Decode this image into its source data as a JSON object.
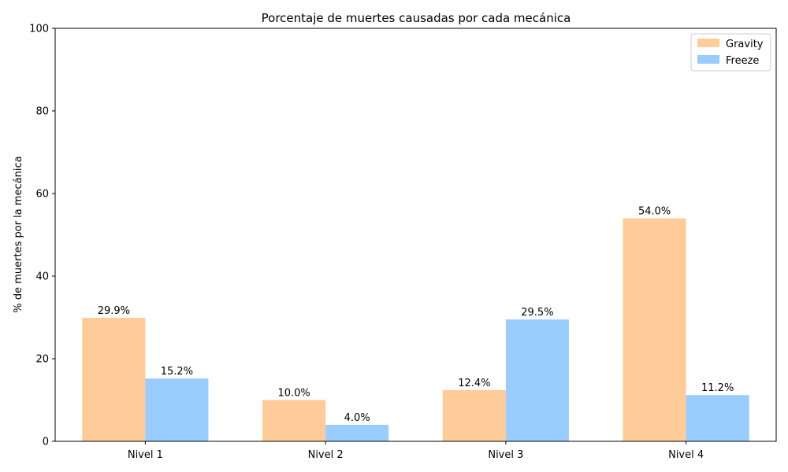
{
  "chart_data": {
    "type": "bar",
    "title": "Porcentaje de muertes causadas por cada mecánica",
    "xlabel": "",
    "ylabel": "% de muertes por la mecánica",
    "categories": [
      "Nivel 1",
      "Nivel 2",
      "Nivel 3",
      "Nivel 4"
    ],
    "ylim": [
      0,
      100
    ],
    "yticks": [
      0,
      20,
      40,
      60,
      80,
      100
    ],
    "grid": false,
    "legend_position": "top-right",
    "series": [
      {
        "name": "Gravity",
        "color": "#ffcc99",
        "values": [
          29.9,
          10.0,
          12.4,
          54.0
        ],
        "labels": [
          "29.9%",
          "10.0%",
          "12.4%",
          "54.0%"
        ]
      },
      {
        "name": "Freeze",
        "color": "#99ccff",
        "values": [
          15.2,
          4.0,
          29.5,
          11.2
        ],
        "labels": [
          "15.2%",
          "4.0%",
          "29.5%",
          "11.2%"
        ]
      }
    ]
  }
}
